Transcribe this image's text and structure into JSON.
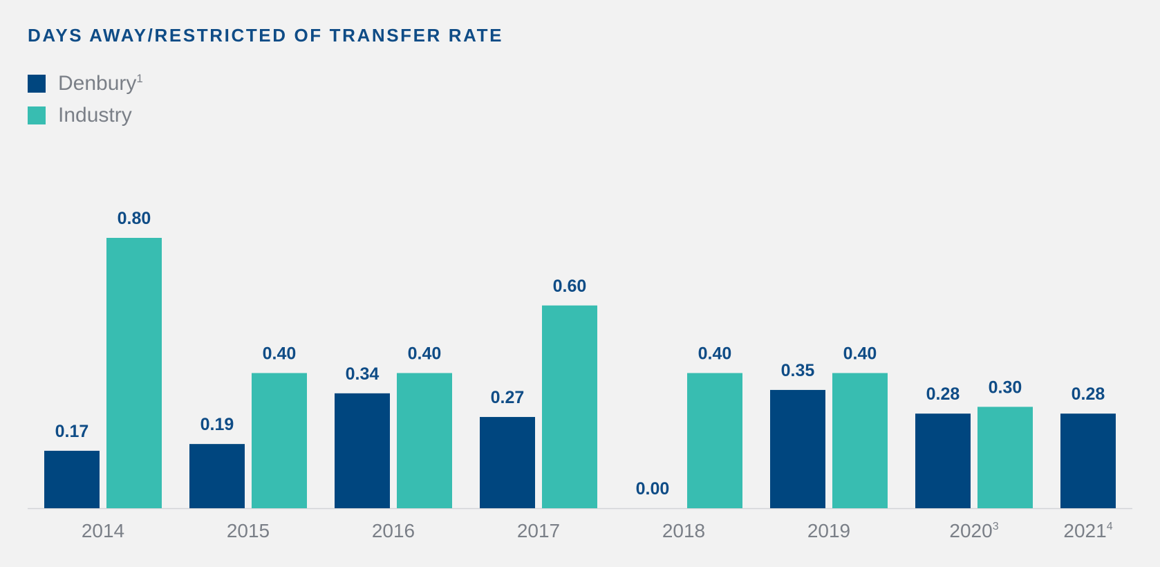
{
  "chart_data": {
    "type": "bar",
    "title": "DAYS AWAY/RESTRICTED OF TRANSFER RATE",
    "categories": [
      {
        "label": "2014",
        "sup": ""
      },
      {
        "label": "2015",
        "sup": ""
      },
      {
        "label": "2016",
        "sup": ""
      },
      {
        "label": "2017",
        "sup": ""
      },
      {
        "label": "2018",
        "sup": ""
      },
      {
        "label": "2019",
        "sup": ""
      },
      {
        "label": "2020",
        "sup": "3"
      },
      {
        "label": "2021",
        "sup": "4"
      }
    ],
    "series": [
      {
        "name": "Denbury",
        "sup": "1",
        "color": "#00467f",
        "values": [
          0.17,
          0.19,
          0.34,
          0.27,
          0.0,
          0.35,
          0.28,
          0.28
        ],
        "labels": [
          "0.17",
          "0.19",
          "0.34",
          "0.27",
          "0.00",
          "0.35",
          "0.28",
          "0.28"
        ]
      },
      {
        "name": "Industry",
        "sup": "",
        "color": "#38bdb1",
        "values": [
          0.8,
          0.4,
          0.4,
          0.6,
          0.4,
          0.4,
          0.3,
          null
        ],
        "labels": [
          "0.80",
          "0.40",
          "0.40",
          "0.60",
          "0.40",
          "0.40",
          "0.30",
          ""
        ]
      }
    ],
    "ylim": [
      0,
      0.8
    ],
    "grid": false,
    "legend_position": "top-left",
    "xlabel": "",
    "ylabel": ""
  }
}
